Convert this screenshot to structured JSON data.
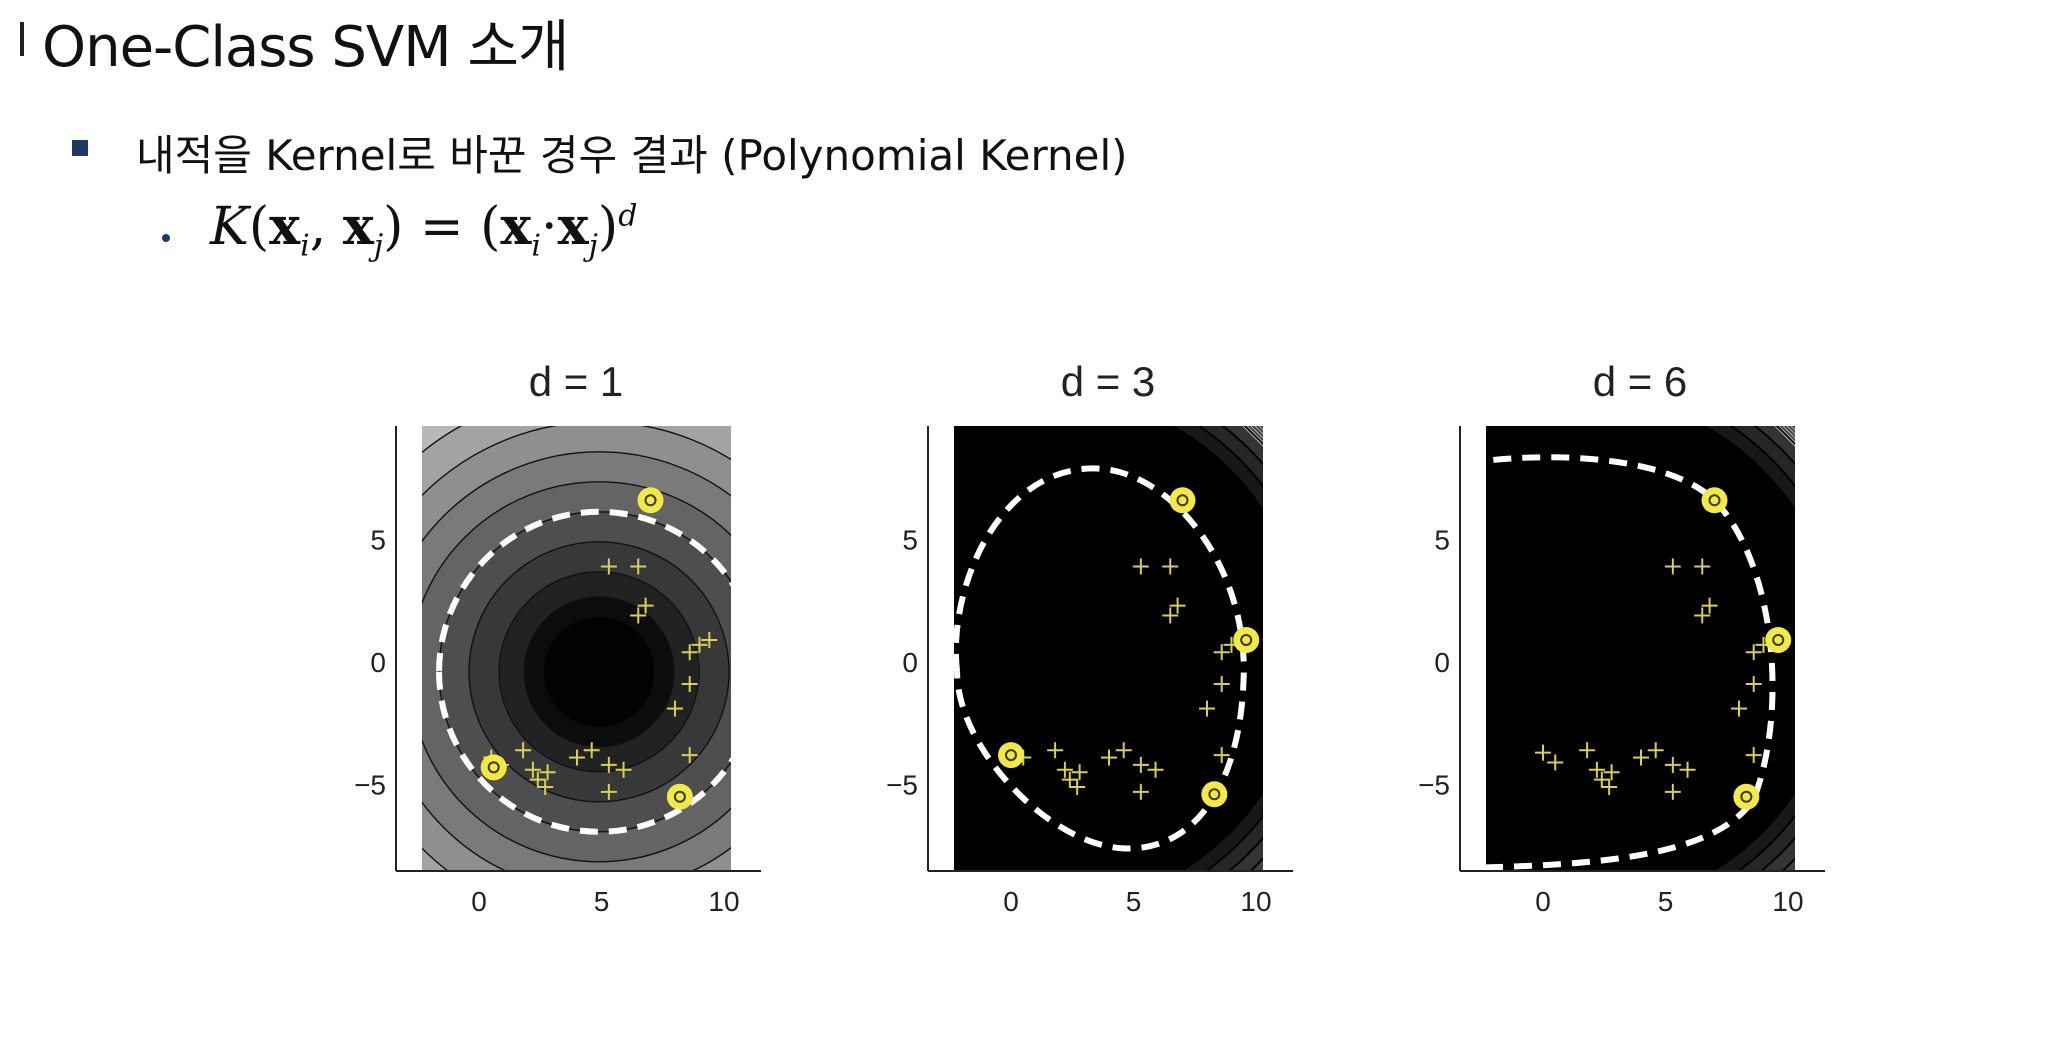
{
  "slide": {
    "title": "One-Class SVM 소개",
    "bullet": "내적을 Kernel로 바꾼 경우 결과  (Polynomial Kernel)",
    "formula": {
      "lhs": "K",
      "xi": "x",
      "i": "i",
      "xj": "x",
      "j": "j",
      "eq": "=",
      "dot": "·",
      "exp": "d"
    }
  },
  "chart_data": [
    {
      "type": "scatter",
      "title": "d =  1",
      "xticks": [
        0,
        5,
        10
      ],
      "yticks": [
        5,
        0,
        -5
      ],
      "xlim": [
        -3.5,
        12.5
      ],
      "ylim": [
        -8.5,
        9.5
      ],
      "series": [
        {
          "marker": "plus",
          "points": [
            [
              5.3,
              3.9
            ],
            [
              6.5,
              3.9
            ],
            [
              6.5,
              1.9
            ],
            [
              6.8,
              2.3
            ],
            [
              8.6,
              0.4
            ],
            [
              9.0,
              0.7
            ],
            [
              9.4,
              0.9
            ],
            [
              8.6,
              -0.9
            ],
            [
              8.0,
              -1.9
            ],
            [
              8.6,
              -3.8
            ],
            [
              1.8,
              -3.6
            ],
            [
              2.2,
              -4.4
            ],
            [
              2.8,
              -4.5
            ],
            [
              2.4,
              -4.8
            ],
            [
              2.7,
              -5.1
            ],
            [
              4.0,
              -3.9
            ],
            [
              4.6,
              -3.6
            ],
            [
              5.3,
              -4.2
            ],
            [
              5.9,
              -4.4
            ],
            [
              5.3,
              -5.3
            ],
            [
              0.5,
              -3.9
            ],
            [
              0.9,
              -4.2
            ]
          ]
        },
        {
          "marker": "support-vector",
          "points": [
            [
              7.0,
              6.6
            ],
            [
              0.6,
              -4.3
            ],
            [
              8.2,
              -5.5
            ]
          ]
        }
      ]
    },
    {
      "type": "scatter",
      "title": "d =  3",
      "xticks": [
        0,
        5,
        10
      ],
      "yticks": [
        5,
        0,
        -5
      ],
      "xlim": [
        -3.5,
        12.5
      ],
      "ylim": [
        -8.5,
        9.5
      ],
      "series": [
        {
          "marker": "plus",
          "points": [
            [
              5.3,
              3.9
            ],
            [
              6.5,
              3.9
            ],
            [
              6.5,
              1.9
            ],
            [
              6.8,
              2.3
            ],
            [
              8.6,
              0.4
            ],
            [
              9.0,
              0.7
            ],
            [
              8.6,
              -0.9
            ],
            [
              8.0,
              -1.9
            ],
            [
              8.6,
              -3.8
            ],
            [
              1.8,
              -3.6
            ],
            [
              2.2,
              -4.4
            ],
            [
              2.8,
              -4.5
            ],
            [
              2.4,
              -4.8
            ],
            [
              2.7,
              -5.1
            ],
            [
              4.0,
              -3.9
            ],
            [
              4.6,
              -3.6
            ],
            [
              5.3,
              -4.2
            ],
            [
              5.9,
              -4.4
            ],
            [
              5.3,
              -5.3
            ],
            [
              0.5,
              -3.9
            ]
          ]
        },
        {
          "marker": "support-vector",
          "points": [
            [
              7.0,
              6.6
            ],
            [
              9.6,
              0.9
            ],
            [
              0.0,
              -3.8
            ],
            [
              8.3,
              -5.4
            ]
          ]
        }
      ]
    },
    {
      "type": "scatter",
      "title": "d =  6",
      "xticks": [
        0,
        5,
        10
      ],
      "yticks": [
        5,
        0,
        -5
      ],
      "xlim": [
        -3.5,
        12.5
      ],
      "ylim": [
        -8.5,
        9.5
      ],
      "series": [
        {
          "marker": "plus",
          "points": [
            [
              5.3,
              3.9
            ],
            [
              6.5,
              3.9
            ],
            [
              6.5,
              1.9
            ],
            [
              6.8,
              2.3
            ],
            [
              8.6,
              0.4
            ],
            [
              9.0,
              0.7
            ],
            [
              8.6,
              -0.9
            ],
            [
              8.0,
              -1.9
            ],
            [
              8.6,
              -3.8
            ],
            [
              1.8,
              -3.6
            ],
            [
              2.2,
              -4.4
            ],
            [
              2.8,
              -4.5
            ],
            [
              2.4,
              -4.8
            ],
            [
              2.7,
              -5.1
            ],
            [
              4.0,
              -3.9
            ],
            [
              4.6,
              -3.6
            ],
            [
              5.3,
              -4.2
            ],
            [
              5.9,
              -4.4
            ],
            [
              5.3,
              -5.3
            ],
            [
              0.0,
              -3.7
            ],
            [
              0.5,
              -4.1
            ]
          ]
        },
        {
          "marker": "support-vector",
          "points": [
            [
              7.0,
              6.6
            ],
            [
              9.6,
              0.9
            ],
            [
              8.3,
              -5.5
            ]
          ]
        }
      ]
    }
  ]
}
